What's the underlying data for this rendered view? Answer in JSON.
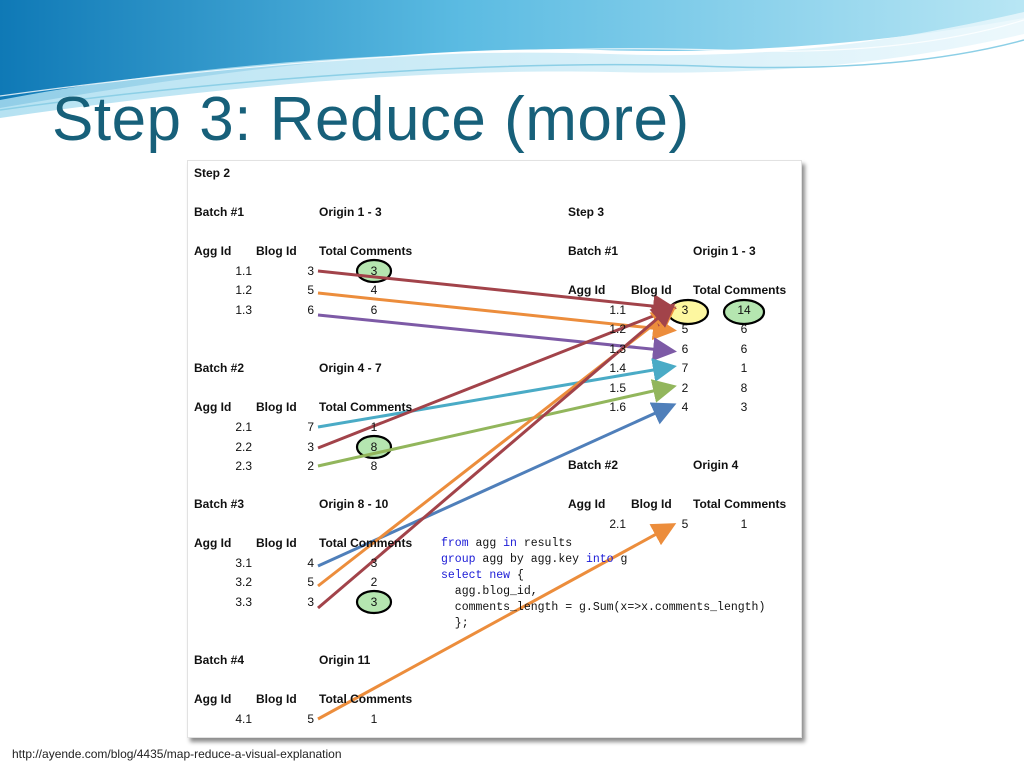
{
  "title": "Step 3: Reduce (more)",
  "source_url": "http://ayende.com/blog/4435/map-reduce-a-visual-explanation",
  "step2": {
    "label": "Step 2",
    "batches": [
      {
        "label": "Batch #1",
        "origin": "Origin 1 - 3",
        "headers": [
          "Agg Id",
          "Blog Id",
          "Total Comments"
        ],
        "rows": [
          {
            "agg": "1.1",
            "blog": "3",
            "total": "3"
          },
          {
            "agg": "1.2",
            "blog": "5",
            "total": "4"
          },
          {
            "agg": "1.3",
            "blog": "6",
            "total": "6"
          }
        ]
      },
      {
        "label": "Batch #2",
        "origin": "Origin 4 - 7",
        "headers": [
          "Agg Id",
          "Blog Id",
          "Total Comments"
        ],
        "rows": [
          {
            "agg": "2.1",
            "blog": "7",
            "total": "1"
          },
          {
            "agg": "2.2",
            "blog": "3",
            "total": "8"
          },
          {
            "agg": "2.3",
            "blog": "2",
            "total": "8"
          }
        ]
      },
      {
        "label": "Batch #3",
        "origin": "Origin 8  - 10",
        "headers": [
          "Agg Id",
          "Blog Id",
          "Total Comments"
        ],
        "rows": [
          {
            "agg": "3.1",
            "blog": "4",
            "total": "3"
          },
          {
            "agg": "3.2",
            "blog": "5",
            "total": "2"
          },
          {
            "agg": "3.3",
            "blog": "3",
            "total": "3"
          }
        ]
      },
      {
        "label": "Batch #4",
        "origin": "Origin 11",
        "headers": [
          "Agg Id",
          "Blog Id",
          "Total Comments"
        ],
        "rows": [
          {
            "agg": "4.1",
            "blog": "5",
            "total": "1"
          }
        ]
      }
    ]
  },
  "step3": {
    "label": "Step 3",
    "batches": [
      {
        "label": "Batch #1",
        "origin": "Origin 1 - 3",
        "headers": [
          "Agg Id",
          "Blog Id",
          "Total Comments"
        ],
        "rows": [
          {
            "agg": "1.1",
            "blog": "3",
            "total": "14"
          },
          {
            "agg": "1.2",
            "blog": "5",
            "total": "6"
          },
          {
            "agg": "1.3",
            "blog": "6",
            "total": "6"
          },
          {
            "agg": "1.4",
            "blog": "7",
            "total": "1"
          },
          {
            "agg": "1.5",
            "blog": "2",
            "total": "8"
          },
          {
            "agg": "1.6",
            "blog": "4",
            "total": "3"
          }
        ]
      },
      {
        "label": "Batch #2",
        "origin": "Origin 4",
        "headers": [
          "Agg Id",
          "Blog Id",
          "Total Comments"
        ],
        "rows": [
          {
            "agg": "2.1",
            "blog": "5",
            "total": "1"
          }
        ]
      }
    ]
  },
  "code": {
    "line1": {
      "kw1": "from",
      "t1": " agg ",
      "kw2": "in",
      "t2": " results"
    },
    "line2": {
      "kw1": "group",
      "t1": " agg by agg.key ",
      "kw2": "into",
      "t2": " g"
    },
    "line3": {
      "kw1": "select",
      "t1": " ",
      "kw2": "new",
      "t2": " {"
    },
    "line4": "  agg.blog_id,",
    "line5": "  comments_length = g.Sum(x=>x.comments_length)",
    "line6": "  };"
  },
  "arrow_colors": {
    "blog_3": "#a2434a",
    "blog_5": "#ec8d3c",
    "blog_6": "#7d5aa6",
    "blog_7": "#4aabc6",
    "blog_2": "#92b65c",
    "blog_4": "#4f7fba"
  },
  "highlight_colors": {
    "green_fill": "#b5e6b0",
    "yellow_fill": "#fdf7a0",
    "ring": "#000000"
  }
}
